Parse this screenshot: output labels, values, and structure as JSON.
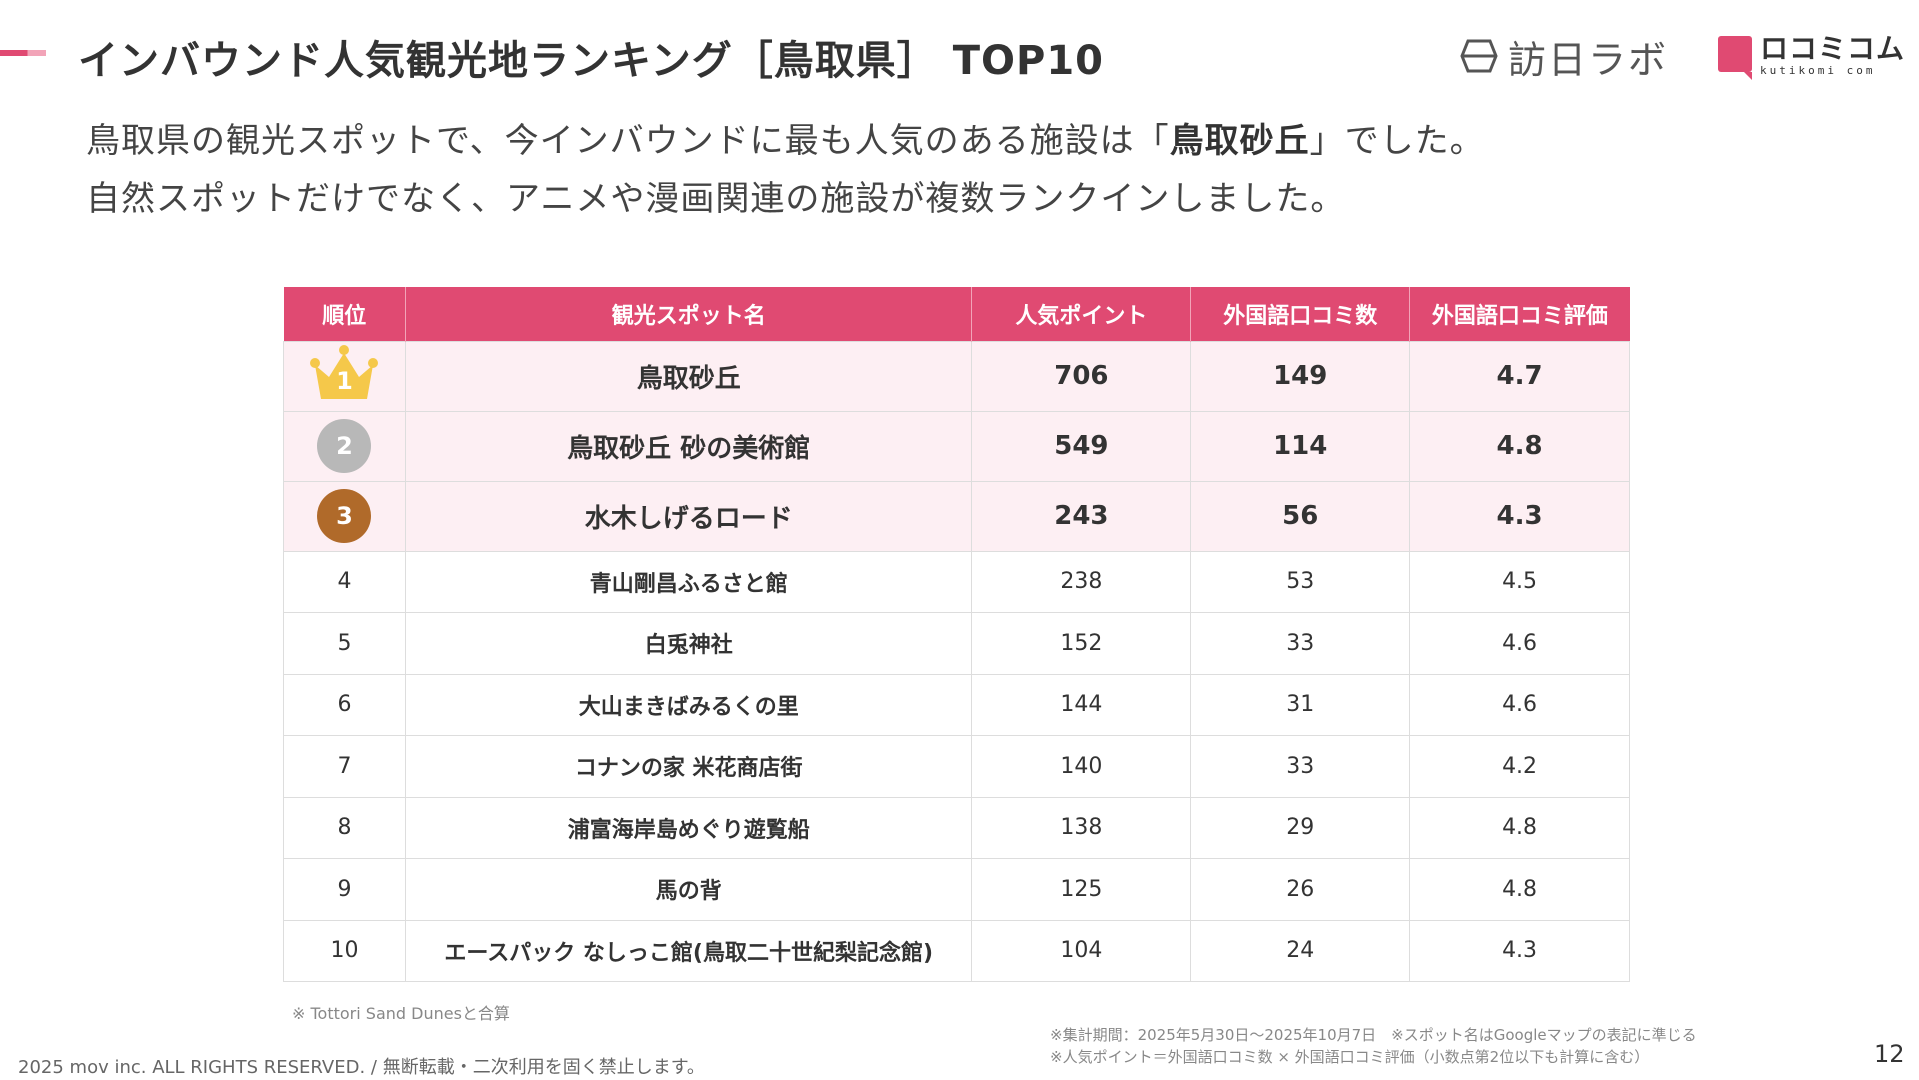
{
  "header": {
    "title": "インバウンド人気観光地ランキング［鳥取県］ TOP10",
    "logo_houjin": "訪日ラボ",
    "logo_kuchikomi_main": "ロコミコム",
    "logo_kuchikomi_sub": "kutikomi com",
    "accent_color": "#e04a72"
  },
  "lead": {
    "line1_prefix": "鳥取県の観光スポットで、今インバウンドに最も人気のある施設は「",
    "line1_highlight": "鳥取砂丘",
    "line1_suffix": "」でした。",
    "line2": "自然スポットだけでなく、アニメや漫画関連の施設が複数ランクインしました。"
  },
  "table": {
    "headers": [
      "順位",
      "観光スポット名",
      "人気ポイント",
      "外国語口コミ数",
      "外国語口コミ評価"
    ],
    "rows": [
      {
        "rank": "1",
        "name": "鳥取砂丘",
        "points": "706",
        "reviews": "149",
        "rating": "4.7"
      },
      {
        "rank": "2",
        "name": "鳥取砂丘 砂の美術館",
        "points": "549",
        "reviews": "114",
        "rating": "4.8"
      },
      {
        "rank": "3",
        "name": "水木しげるロード",
        "points": "243",
        "reviews": "56",
        "rating": "4.3"
      },
      {
        "rank": "4",
        "name": "青山剛昌ふるさと館",
        "points": "238",
        "reviews": "53",
        "rating": "4.5"
      },
      {
        "rank": "5",
        "name": "白兎神社",
        "points": "152",
        "reviews": "33",
        "rating": "4.6"
      },
      {
        "rank": "6",
        "name": "大山まきばみるくの里",
        "points": "144",
        "reviews": "31",
        "rating": "4.6"
      },
      {
        "rank": "7",
        "name": "コナンの家 米花商店街",
        "points": "140",
        "reviews": "33",
        "rating": "4.2"
      },
      {
        "rank": "8",
        "name": "浦富海岸島めぐり遊覧船",
        "points": "138",
        "reviews": "29",
        "rating": "4.8"
      },
      {
        "rank": "9",
        "name": "馬の背",
        "points": "125",
        "reviews": "26",
        "rating": "4.8"
      },
      {
        "rank": "10",
        "name": "エースパック なしっこ館(鳥取二十世紀梨記念館)",
        "points": "104",
        "reviews": "24",
        "rating": "4.3"
      }
    ],
    "badge_colors": {
      "gold": "#f5c84a",
      "silver": "#b8b8b8",
      "bronze": "#b06a2a"
    }
  },
  "notes": {
    "left": "※ Tottori Sand Dunesと合算",
    "right_line1": "※集計期間：2025年5月30日〜2025年10月7日　※スポット名はGoogleマップの表記に準じる",
    "right_line2": "※人気ポイント＝外国語口コミ数 × 外国語口コミ評価（小数点第2位以下も計算に含む）"
  },
  "footer": {
    "copyright": "2025 mov inc. ALL RIGHTS RESERVED. / 無断転載・二次利用を固く禁止します。",
    "page_number": "12"
  }
}
